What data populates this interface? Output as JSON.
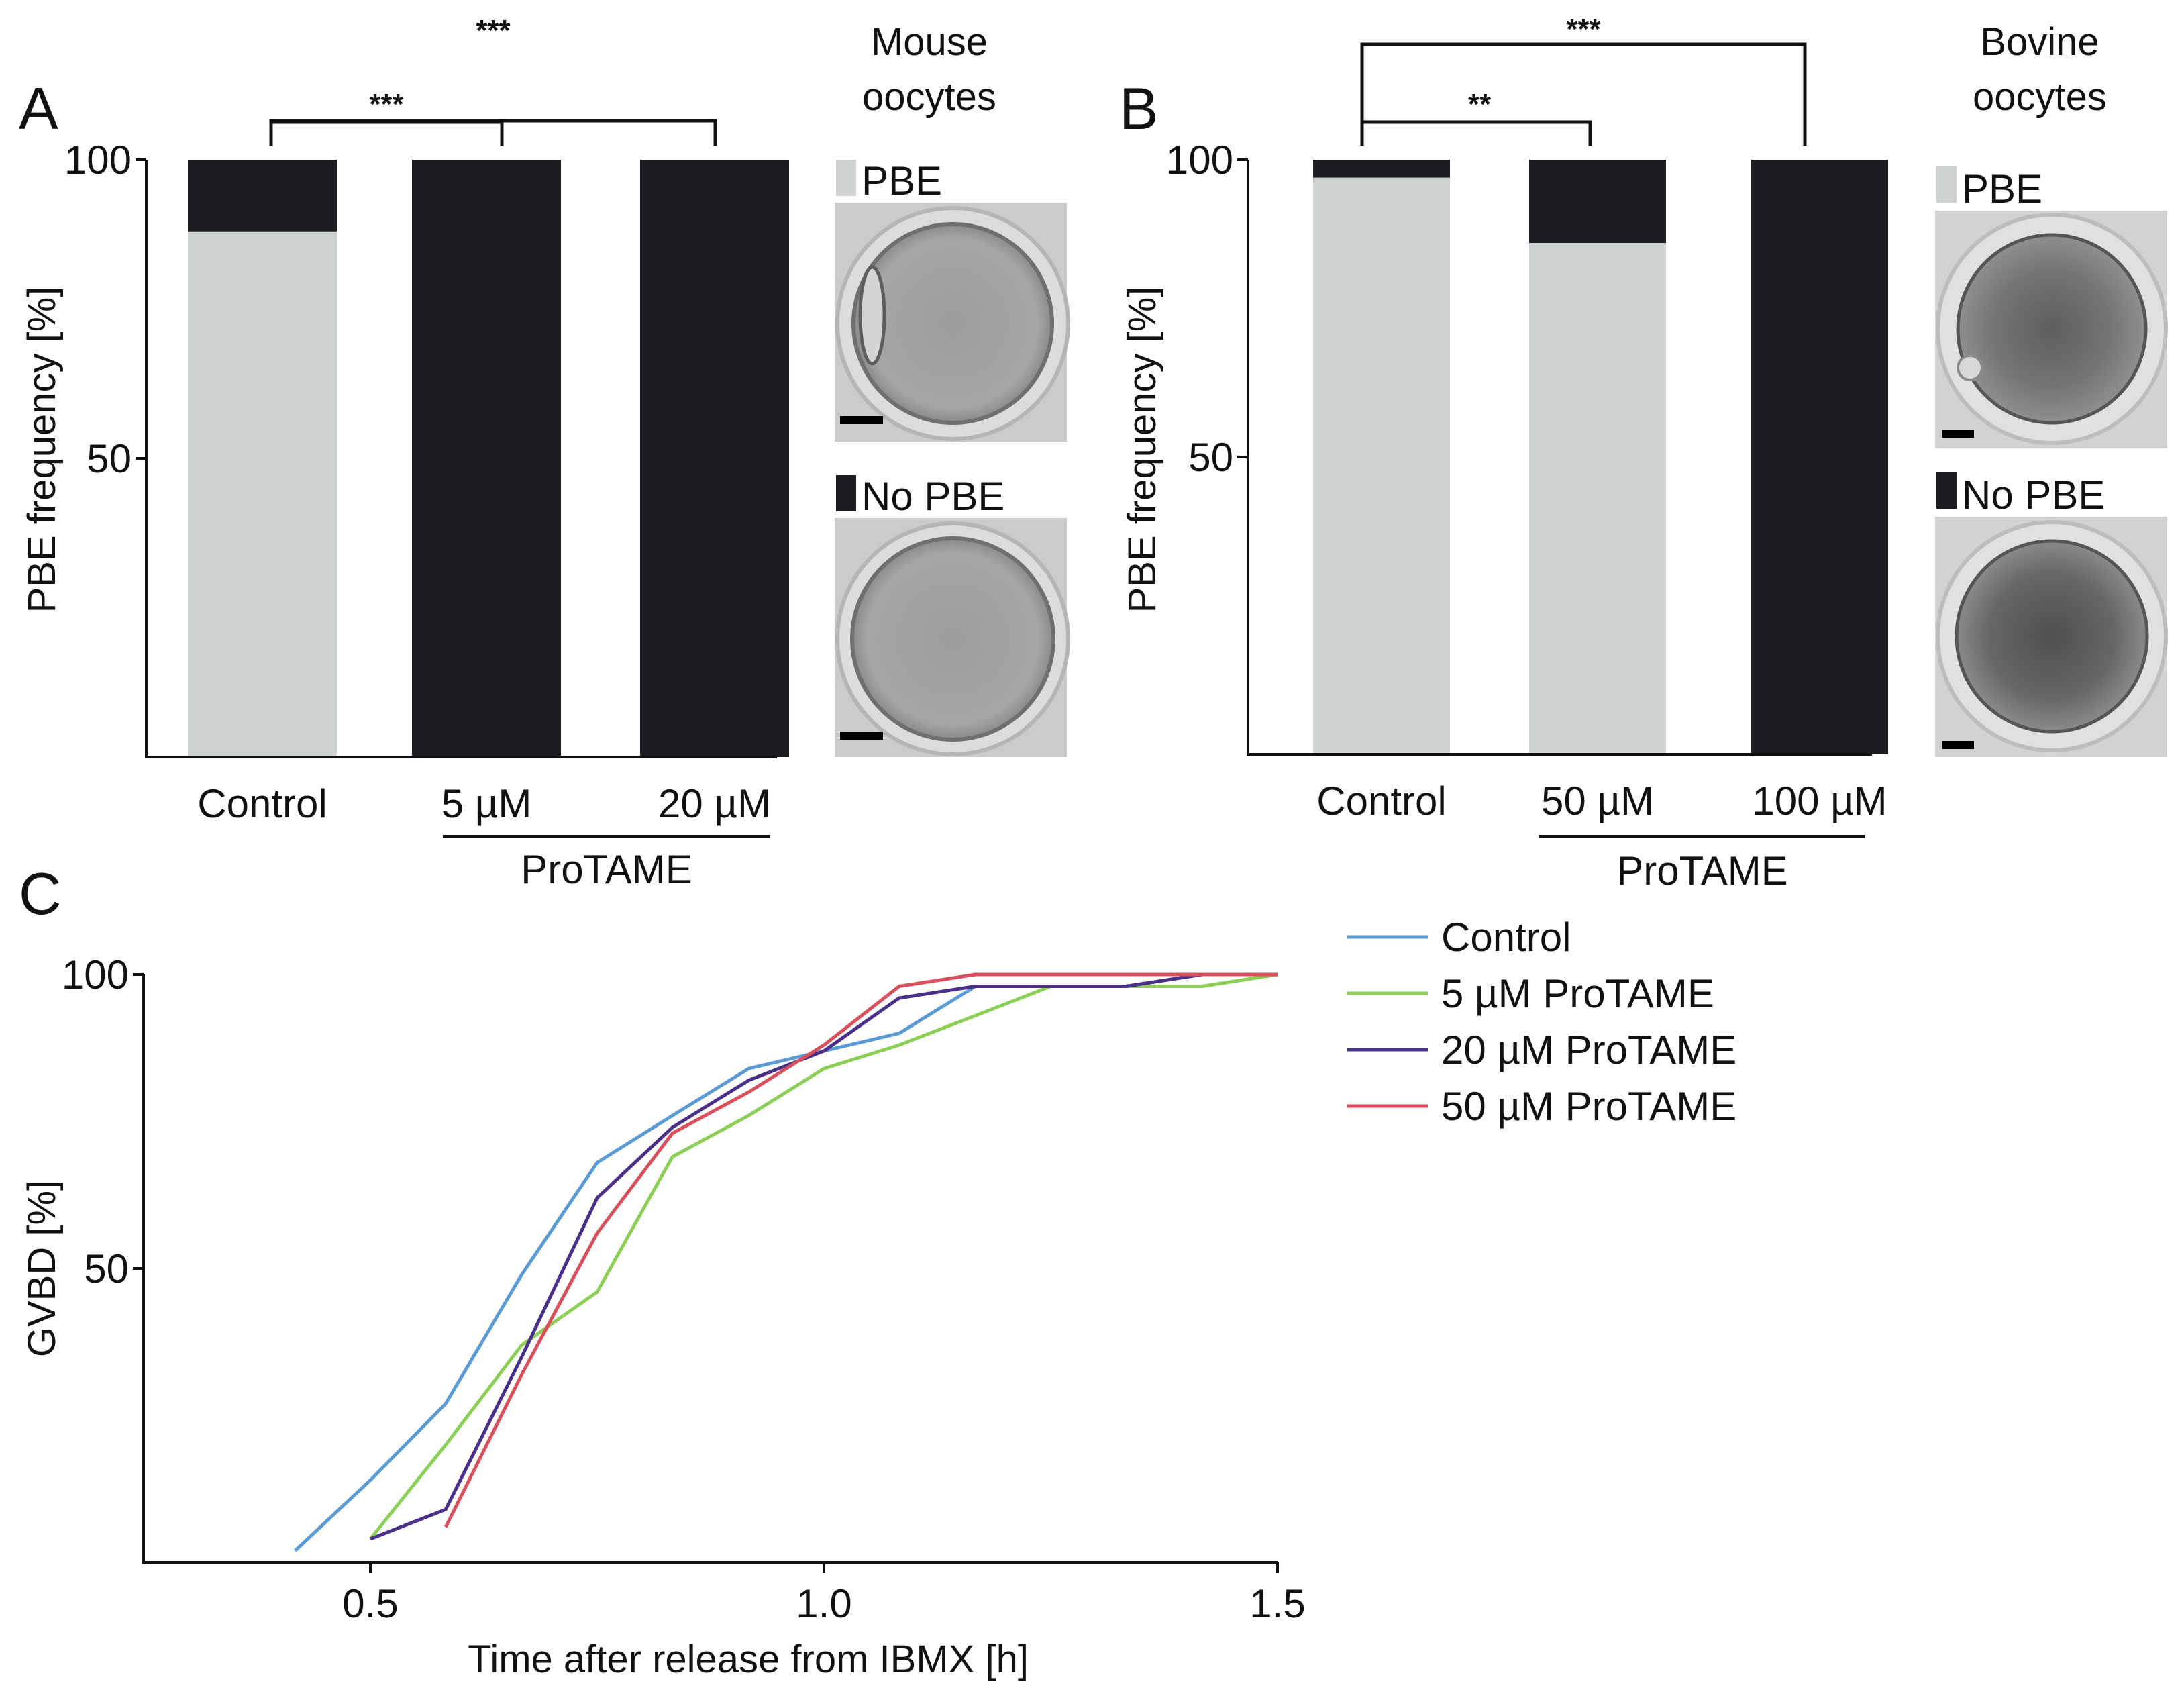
{
  "panels": {
    "a": {
      "letter": "A",
      "ylabel": "PBE frequency [%]",
      "species": [
        "Mouse",
        "oocytes"
      ],
      "group_label": "ProTAME",
      "significance": [
        "***",
        "***"
      ],
      "legend": {
        "pbe": "PBE",
        "no_pbe": "No PBE"
      }
    },
    "b": {
      "letter": "B",
      "ylabel": "PBE frequency [%]",
      "species": [
        "Bovine",
        "oocytes"
      ],
      "group_label": "ProTAME",
      "significance": [
        "**",
        "***"
      ],
      "legend": {
        "pbe": "PBE",
        "no_pbe": "No PBE"
      }
    },
    "c": {
      "letter": "C",
      "ylabel": "GVBD [%]",
      "xlabel": "Time after release from IBMX [h]"
    }
  },
  "colors": {
    "pbe": "#cfd3cf",
    "no_pbe": "#1b1c20"
  },
  "chart_data": [
    {
      "id": "A",
      "type": "bar",
      "stacked": true,
      "categories": [
        "Control",
        "5 µM",
        "20 µM"
      ],
      "series": [
        {
          "name": "PBE",
          "values": [
            88,
            0,
            0
          ]
        },
        {
          "name": "No PBE",
          "values": [
            12,
            100,
            100
          ]
        }
      ],
      "ylabel": "PBE frequency [%]",
      "ylim": [
        0,
        100
      ],
      "yticks": [
        50,
        100
      ],
      "comparisons": [
        {
          "from": "Control",
          "to": "5 µM",
          "label": "***"
        },
        {
          "from": "Control",
          "to": "20 µM",
          "label": "***"
        }
      ]
    },
    {
      "id": "B",
      "type": "bar",
      "stacked": true,
      "categories": [
        "Control",
        "50 µM",
        "100 µM"
      ],
      "series": [
        {
          "name": "PBE",
          "values": [
            97,
            86,
            0
          ]
        },
        {
          "name": "No PBE",
          "values": [
            3,
            14,
            100
          ]
        }
      ],
      "ylabel": "PBE frequency [%]",
      "ylim": [
        0,
        100
      ],
      "yticks": [
        50,
        100
      ],
      "comparisons": [
        {
          "from": "Control",
          "to": "50 µM",
          "label": "**"
        },
        {
          "from": "Control",
          "to": "100 µM",
          "label": "***"
        }
      ]
    },
    {
      "id": "C",
      "type": "line",
      "xlabel": "Time after release from IBMX [h]",
      "ylabel": "GVBD [%]",
      "xlim": [
        0.25,
        1.5
      ],
      "ylim": [
        0,
        100
      ],
      "xticks": [
        "0.5",
        "1.0",
        "1.5"
      ],
      "yticks": [
        50,
        100
      ],
      "legend_position": "right",
      "series": [
        {
          "name": "Control",
          "color": "#5b9bd5",
          "points": [
            [
              0.417,
              2
            ],
            [
              0.5,
              14
            ],
            [
              0.583,
              27
            ],
            [
              0.667,
              49
            ],
            [
              0.75,
              68
            ],
            [
              0.833,
              76
            ],
            [
              0.917,
              84
            ],
            [
              1.0,
              87
            ],
            [
              1.083,
              90
            ],
            [
              1.167,
              98
            ],
            [
              1.25,
              98
            ],
            [
              1.333,
              98
            ],
            [
              1.417,
              100
            ],
            [
              1.5,
              100
            ]
          ]
        },
        {
          "name": "5 µM ProTAME",
          "color": "#8ccf57",
          "points": [
            [
              0.5,
              4
            ],
            [
              0.583,
              20
            ],
            [
              0.667,
              37
            ],
            [
              0.75,
              46
            ],
            [
              0.833,
              69
            ],
            [
              0.917,
              76
            ],
            [
              1.0,
              84
            ],
            [
              1.083,
              88
            ],
            [
              1.167,
              93
            ],
            [
              1.25,
              98
            ],
            [
              1.333,
              98
            ],
            [
              1.417,
              98
            ],
            [
              1.5,
              100
            ]
          ]
        },
        {
          "name": "20 µM ProTAME",
          "color": "#4a3088",
          "points": [
            [
              0.5,
              4
            ],
            [
              0.583,
              9
            ],
            [
              0.667,
              35
            ],
            [
              0.75,
              62
            ],
            [
              0.833,
              74
            ],
            [
              0.917,
              82
            ],
            [
              1.0,
              87
            ],
            [
              1.083,
              96
            ],
            [
              1.167,
              98
            ],
            [
              1.25,
              98
            ],
            [
              1.333,
              98
            ],
            [
              1.417,
              100
            ],
            [
              1.5,
              100
            ]
          ]
        },
        {
          "name": "50 µM ProTAME",
          "color": "#d9505c",
          "points": [
            [
              0.583,
              6
            ],
            [
              0.667,
              32
            ],
            [
              0.75,
              56
            ],
            [
              0.833,
              73
            ],
            [
              0.917,
              80
            ],
            [
              1.0,
              88
            ],
            [
              1.083,
              98
            ],
            [
              1.167,
              100
            ],
            [
              1.25,
              100
            ],
            [
              1.333,
              100
            ],
            [
              1.417,
              100
            ],
            [
              1.5,
              100
            ]
          ]
        }
      ]
    }
  ]
}
